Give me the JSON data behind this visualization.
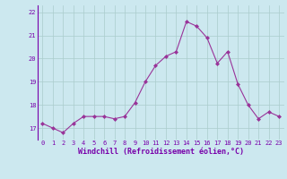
{
  "x": [
    0,
    1,
    2,
    3,
    4,
    5,
    6,
    7,
    8,
    9,
    10,
    11,
    12,
    13,
    14,
    15,
    16,
    17,
    18,
    19,
    20,
    21,
    22,
    23
  ],
  "y": [
    17.2,
    17.0,
    16.8,
    17.2,
    17.5,
    17.5,
    17.5,
    17.4,
    17.5,
    18.1,
    19.0,
    19.7,
    20.1,
    20.3,
    21.6,
    21.4,
    20.9,
    19.8,
    20.3,
    18.9,
    18.0,
    17.4,
    17.7,
    17.5
  ],
  "line_color": "#993399",
  "marker": "D",
  "marker_size": 2.0,
  "bg_color": "#cce8ef",
  "grid_color": "#aacccc",
  "xlabel": "Windchill (Refroidissement éolien,°C)",
  "xlabel_color": "#7700aa",
  "tick_color": "#7700aa",
  "yticks": [
    17,
    18,
    19,
    20,
    21,
    22
  ],
  "xticks": [
    0,
    1,
    2,
    3,
    4,
    5,
    6,
    7,
    8,
    9,
    10,
    11,
    12,
    13,
    14,
    15,
    16,
    17,
    18,
    19,
    20,
    21,
    22,
    23
  ],
  "ylim": [
    16.5,
    22.3
  ],
  "xlim": [
    -0.5,
    23.5
  ],
  "font_family": "monospace",
  "tick_fontsize": 5.0,
  "xlabel_fontsize": 6.0
}
